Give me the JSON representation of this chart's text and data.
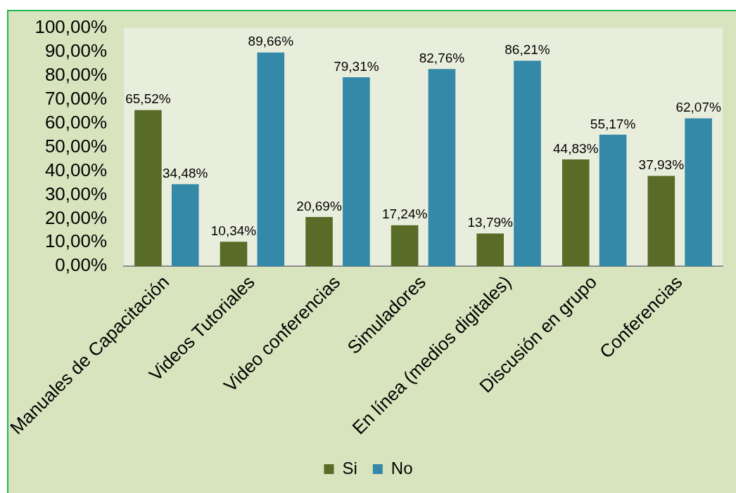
{
  "chart_data": {
    "type": "bar",
    "categories": [
      "Manuales de Capacitación",
      "Videos Tutoriales",
      "Video conferencias",
      "Simuladores",
      "En línea (medios digitales)",
      "Discusión en grupo",
      "Conferencias"
    ],
    "series": [
      {
        "name": "Si",
        "color": "#586b27",
        "values": [
          65.52,
          10.34,
          20.69,
          17.24,
          13.79,
          44.83,
          37.93
        ],
        "value_labels": [
          "65,52%",
          "10,34%",
          "20,69%",
          "17,24%",
          "13,79%",
          "44,83%",
          "37,93%"
        ]
      },
      {
        "name": "No",
        "color": "#3488a8",
        "values": [
          34.48,
          89.66,
          79.31,
          82.76,
          86.21,
          55.17,
          62.07
        ],
        "value_labels": [
          "34,48%",
          "89,66%",
          "79,31%",
          "82,76%",
          "86,21%",
          "55,17%",
          "62,07%"
        ]
      }
    ],
    "ylim": [
      0,
      100
    ],
    "yticks": [
      {
        "value": 0,
        "label": "0,00%"
      },
      {
        "value": 10,
        "label": "10,00%"
      },
      {
        "value": 20,
        "label": "20,00%"
      },
      {
        "value": 30,
        "label": "30,00%"
      },
      {
        "value": 40,
        "label": "40,00%"
      },
      {
        "value": 50,
        "label": "50,00%"
      },
      {
        "value": 60,
        "label": "60,00%"
      },
      {
        "value": 70,
        "label": "70,00%"
      },
      {
        "value": 80,
        "label": "80,00%"
      },
      {
        "value": 90,
        "label": "90,00%"
      },
      {
        "value": 100,
        "label": "100,00%"
      }
    ],
    "legend": "bottom"
  }
}
